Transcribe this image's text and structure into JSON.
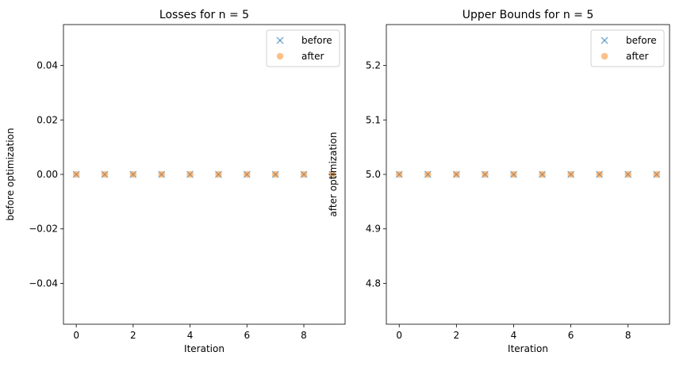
{
  "chart_data": [
    {
      "type": "scatter",
      "title": "Losses for n = 5",
      "xlabel": "Iteration",
      "ylabel": "before optimization",
      "xlim": [
        -0.45,
        9.45
      ],
      "ylim": [
        -0.055,
        0.055
      ],
      "xticks": [
        0,
        2,
        4,
        6,
        8
      ],
      "yticks": [
        -0.04,
        -0.02,
        0.0,
        0.02,
        0.04
      ],
      "ytick_labels": [
        "−0.04",
        "−0.02",
        "0.00",
        "0.02",
        "0.04"
      ],
      "legend_position": "top-right",
      "series": [
        {
          "name": "before",
          "marker": "x",
          "color": "#1f77b4",
          "x": [
            0,
            1,
            2,
            3,
            4,
            5,
            6,
            7,
            8,
            9
          ],
          "y": [
            0,
            0,
            0,
            0,
            0,
            0,
            0,
            0,
            0,
            0
          ]
        },
        {
          "name": "after",
          "marker": "o",
          "color": "#ff7f0e",
          "x": [
            0,
            1,
            2,
            3,
            4,
            5,
            6,
            7,
            8,
            9
          ],
          "y": [
            0,
            0,
            0,
            0,
            0,
            0,
            0,
            0,
            0,
            0
          ]
        }
      ]
    },
    {
      "type": "scatter",
      "title": "Upper Bounds for n = 5",
      "xlabel": "Iteration",
      "ylabel": "after optimization",
      "xlim": [
        -0.45,
        9.45
      ],
      "ylim": [
        4.725,
        5.275
      ],
      "xticks": [
        0,
        2,
        4,
        6,
        8
      ],
      "yticks": [
        4.8,
        4.9,
        5.0,
        5.1,
        5.2
      ],
      "ytick_labels": [
        "4.8",
        "4.9",
        "5.0",
        "5.1",
        "5.2"
      ],
      "legend_position": "top-right",
      "series": [
        {
          "name": "before",
          "marker": "x",
          "color": "#1f77b4",
          "x": [
            0,
            1,
            2,
            3,
            4,
            5,
            6,
            7,
            8,
            9
          ],
          "y": [
            5,
            5,
            5,
            5,
            5,
            5,
            5,
            5,
            5,
            5
          ]
        },
        {
          "name": "after",
          "marker": "o",
          "color": "#ff7f0e",
          "x": [
            0,
            1,
            2,
            3,
            4,
            5,
            6,
            7,
            8,
            9
          ],
          "y": [
            5,
            5,
            5,
            5,
            5,
            5,
            5,
            5,
            5,
            5
          ]
        }
      ]
    }
  ]
}
